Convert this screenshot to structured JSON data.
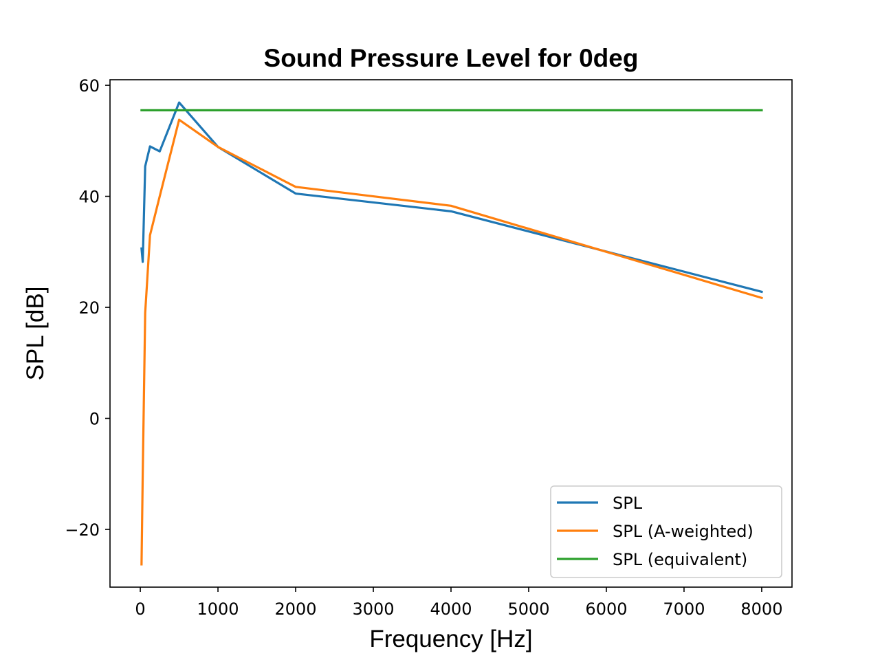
{
  "chart_data": {
    "type": "line",
    "title": "Sound Pressure Level for 0deg",
    "xlabel": "Frequency [Hz]",
    "ylabel": "SPL [dB]",
    "xlim": [
      -390,
      8390
    ],
    "ylim": [
      -30.4,
      61.0
    ],
    "xticks": [
      0,
      1000,
      2000,
      3000,
      4000,
      5000,
      6000,
      7000,
      8000
    ],
    "xtick_labels": [
      "0",
      "1000",
      "2000",
      "3000",
      "4000",
      "5000",
      "6000",
      "7000",
      "8000"
    ],
    "yticks": [
      -20,
      0,
      20,
      40,
      60
    ],
    "ytick_labels": [
      "−20",
      "0",
      "20",
      "40",
      "60"
    ],
    "grid": false,
    "legend_position": "lower-right",
    "series": [
      {
        "name": "SPL",
        "color": "#1f77b4",
        "x": [
          16,
          31.5,
          63,
          125,
          250,
          500,
          1000,
          2000,
          4000,
          8000
        ],
        "y": [
          30.6,
          28.2,
          45.4,
          49.0,
          48.1,
          56.9,
          48.9,
          40.5,
          37.3,
          22.8
        ]
      },
      {
        "name": "SPL (A-weighted)",
        "color": "#ff7f0e",
        "x": [
          16,
          31.5,
          63,
          125,
          250,
          500,
          1000,
          2000,
          4000,
          8000
        ],
        "y": [
          -26.3,
          -10.0,
          19.0,
          33.0,
          40.0,
          53.8,
          48.9,
          41.7,
          38.3,
          21.7
        ]
      },
      {
        "name": "SPL (equivalent)",
        "color": "#2ca02c",
        "x": [
          16,
          8000
        ],
        "y": [
          55.5,
          55.5
        ]
      }
    ]
  }
}
